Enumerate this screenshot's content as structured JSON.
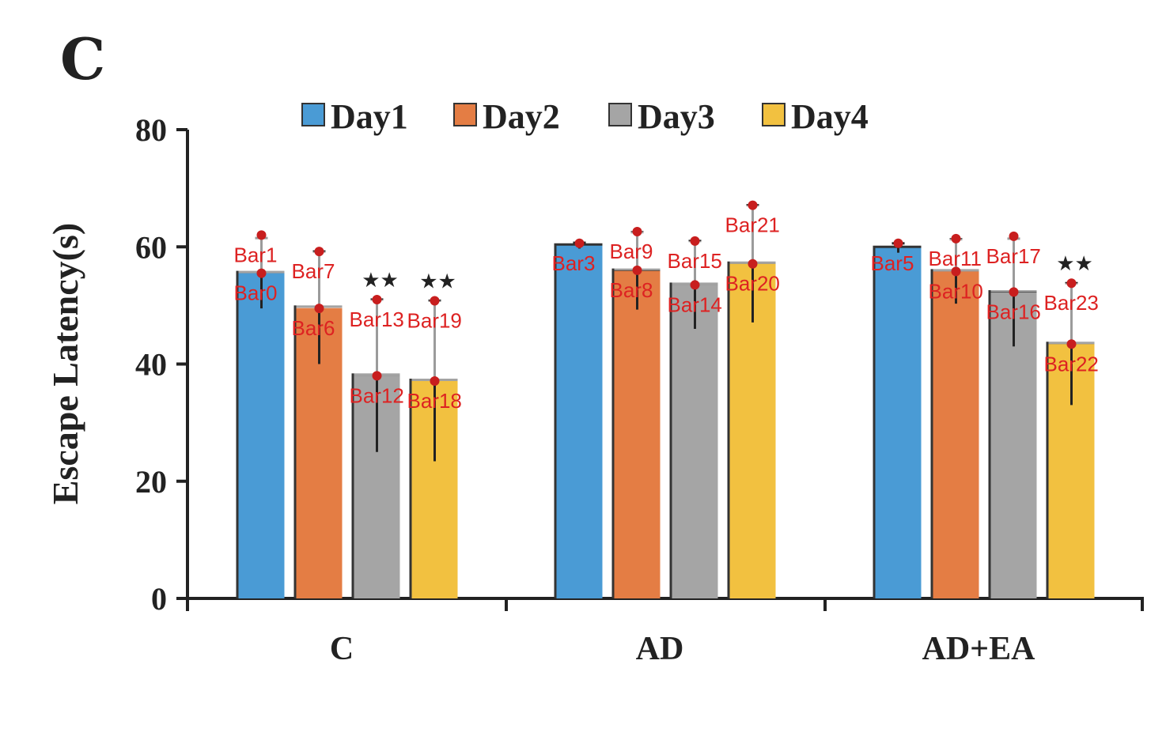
{
  "panel_letter": "C",
  "chart_data": {
    "type": "bar",
    "title": "",
    "xlabel": "",
    "ylabel": "Escape Latency(s)",
    "ylim": [
      0,
      80
    ],
    "yticks": [
      "0",
      "20",
      "40",
      "60",
      "80"
    ],
    "categories": [
      "C",
      "AD",
      "AD+EA"
    ],
    "legend_position": "top",
    "series": [
      {
        "name": "Day1",
        "color": "#4a9bd5",
        "values": [
          55.5,
          60.2,
          59.8
        ],
        "error": [
          6.0,
          0.5,
          0.8
        ]
      },
      {
        "name": "Day2",
        "color": "#e47d44",
        "values": [
          49.6,
          55.9,
          55.8
        ],
        "error": [
          9.6,
          6.6,
          5.5
        ]
      },
      {
        "name": "Day3",
        "color": "#a5a5a5",
        "values": [
          38.0,
          53.5,
          52.2
        ],
        "error": [
          13.0,
          7.5,
          9.2
        ]
      },
      {
        "name": "Day4",
        "color": "#f2c140",
        "values": [
          37.1,
          57.1,
          43.4
        ],
        "error": [
          13.7,
          10.0,
          10.4
        ]
      }
    ],
    "significance": [
      {
        "category": "C",
        "series": "Day3",
        "label": "★★"
      },
      {
        "category": "C",
        "series": "Day4",
        "label": "★★"
      },
      {
        "category": "AD+EA",
        "series": "Day4",
        "label": "★★"
      }
    ],
    "bar_annotations": [
      {
        "label": "Bar0",
        "value": 55.5
      },
      {
        "label": "Bar1",
        "value": 62.0
      },
      {
        "label": "Bar3",
        "value": 60.6
      },
      {
        "label": "Bar5",
        "value": 60.6
      },
      {
        "label": "Bar6",
        "value": 49.5
      },
      {
        "label": "Bar7",
        "value": 59.2
      },
      {
        "label": "Bar8",
        "value": 56.0
      },
      {
        "label": "Bar9",
        "value": 62.6
      },
      {
        "label": "Bar10",
        "value": 55.8
      },
      {
        "label": "Bar11",
        "value": 61.4
      },
      {
        "label": "Bar12",
        "value": 38.0
      },
      {
        "label": "Bar13",
        "value": 51.0
      },
      {
        "label": "Bar14",
        "value": 53.5
      },
      {
        "label": "Bar15",
        "value": 61.0
      },
      {
        "label": "Bar16",
        "value": 52.3
      },
      {
        "label": "Bar17",
        "value": 61.8
      },
      {
        "label": "Bar18",
        "value": 37.1
      },
      {
        "label": "Bar19",
        "value": 50.8
      },
      {
        "label": "Bar20",
        "value": 57.1
      },
      {
        "label": "Bar21",
        "value": 67.1
      },
      {
        "label": "Bar22",
        "value": 43.4
      },
      {
        "label": "Bar23",
        "value": 53.8
      }
    ]
  }
}
